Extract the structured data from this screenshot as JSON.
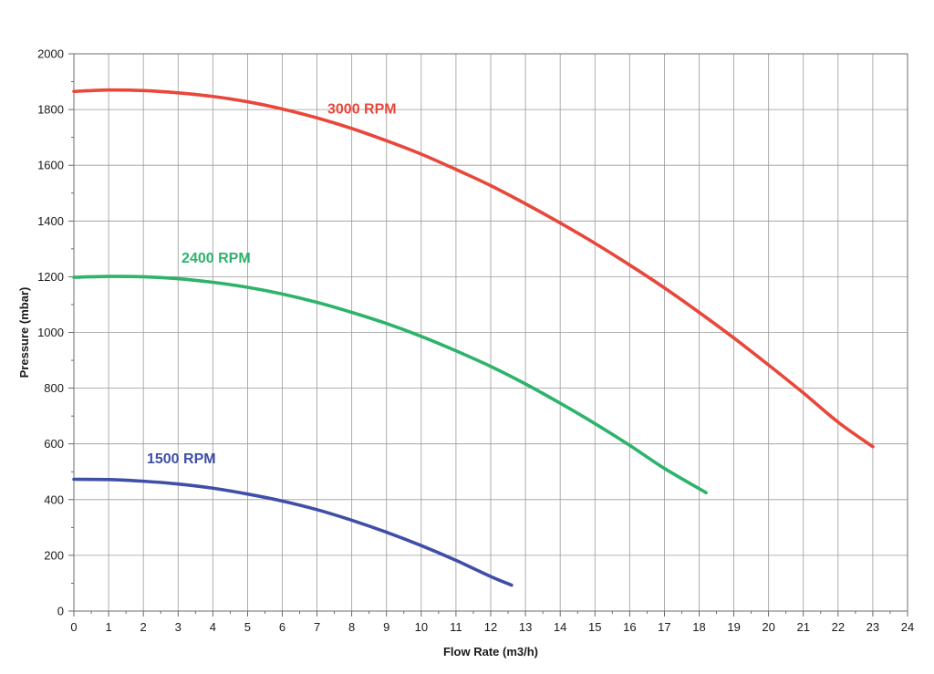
{
  "chart_data": {
    "type": "line",
    "title": "",
    "xlabel": "Flow Rate (m3/h)",
    "ylabel": "Pressure (mbar)",
    "xlim": [
      0,
      24
    ],
    "ylim": [
      0,
      2000
    ],
    "x_ticks": [
      0,
      1,
      2,
      3,
      4,
      5,
      6,
      7,
      8,
      9,
      10,
      11,
      12,
      13,
      14,
      15,
      16,
      17,
      18,
      19,
      20,
      21,
      22,
      23,
      24
    ],
    "y_ticks": [
      0,
      200,
      400,
      600,
      800,
      1000,
      1200,
      1400,
      1600,
      1800,
      2000
    ],
    "x_minor_step": 0.5,
    "y_minor_step": 100,
    "grid": true,
    "series": [
      {
        "name": "3000 RPM",
        "color": "#e8473a",
        "label_anchor": {
          "x": 7.3,
          "y": 1785
        },
        "points": [
          [
            0,
            1865
          ],
          [
            1,
            1870
          ],
          [
            2,
            1868
          ],
          [
            3,
            1860
          ],
          [
            4,
            1847
          ],
          [
            5,
            1828
          ],
          [
            6,
            1802
          ],
          [
            7,
            1770
          ],
          [
            8,
            1732
          ],
          [
            9,
            1688
          ],
          [
            10,
            1640
          ],
          [
            11,
            1585
          ],
          [
            12,
            1527
          ],
          [
            13,
            1462
          ],
          [
            14,
            1393
          ],
          [
            15,
            1320
          ],
          [
            16,
            1242
          ],
          [
            17,
            1160
          ],
          [
            18,
            1072
          ],
          [
            19,
            980
          ],
          [
            20,
            883
          ],
          [
            21,
            783
          ],
          [
            22,
            678
          ],
          [
            23,
            590
          ]
        ]
      },
      {
        "name": "2400 RPM",
        "color": "#2db36a",
        "label_anchor": {
          "x": 3.1,
          "y": 1250
        },
        "points": [
          [
            0,
            1198
          ],
          [
            1,
            1201
          ],
          [
            2,
            1200
          ],
          [
            3,
            1193
          ],
          [
            4,
            1180
          ],
          [
            5,
            1162
          ],
          [
            6,
            1138
          ],
          [
            7,
            1108
          ],
          [
            8,
            1072
          ],
          [
            9,
            1032
          ],
          [
            10,
            986
          ],
          [
            11,
            934
          ],
          [
            12,
            878
          ],
          [
            13,
            815
          ],
          [
            14,
            746
          ],
          [
            15,
            673
          ],
          [
            16,
            595
          ],
          [
            17,
            512
          ],
          [
            18.2,
            425
          ]
        ]
      },
      {
        "name": "1500 RPM",
        "color": "#3f4fa8",
        "label_anchor": {
          "x": 2.1,
          "y": 530
        },
        "points": [
          [
            0,
            473
          ],
          [
            1,
            472
          ],
          [
            2,
            466
          ],
          [
            3,
            456
          ],
          [
            4,
            441
          ],
          [
            5,
            420
          ],
          [
            6,
            395
          ],
          [
            7,
            364
          ],
          [
            8,
            326
          ],
          [
            9,
            283
          ],
          [
            10,
            235
          ],
          [
            11,
            182
          ],
          [
            12,
            124
          ],
          [
            12.6,
            93
          ]
        ]
      }
    ]
  }
}
